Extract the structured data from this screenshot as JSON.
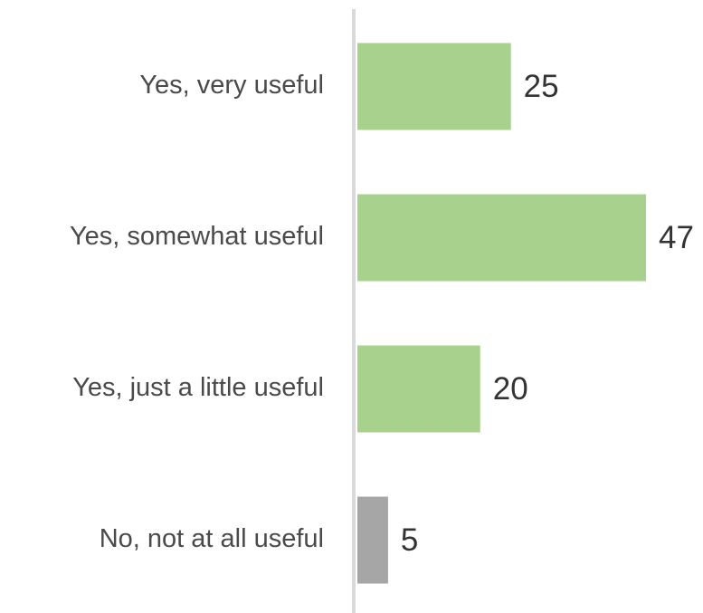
{
  "chart_data": {
    "type": "bar",
    "orientation": "horizontal",
    "categories": [
      "Yes, very useful",
      "Yes, somewhat useful",
      "Yes, just a little useful",
      "No, not at all useful"
    ],
    "values": [
      25,
      47,
      20,
      5
    ],
    "colors": [
      "#a9d18e",
      "#a9d18e",
      "#a9d18e",
      "#a6a6a6"
    ]
  }
}
